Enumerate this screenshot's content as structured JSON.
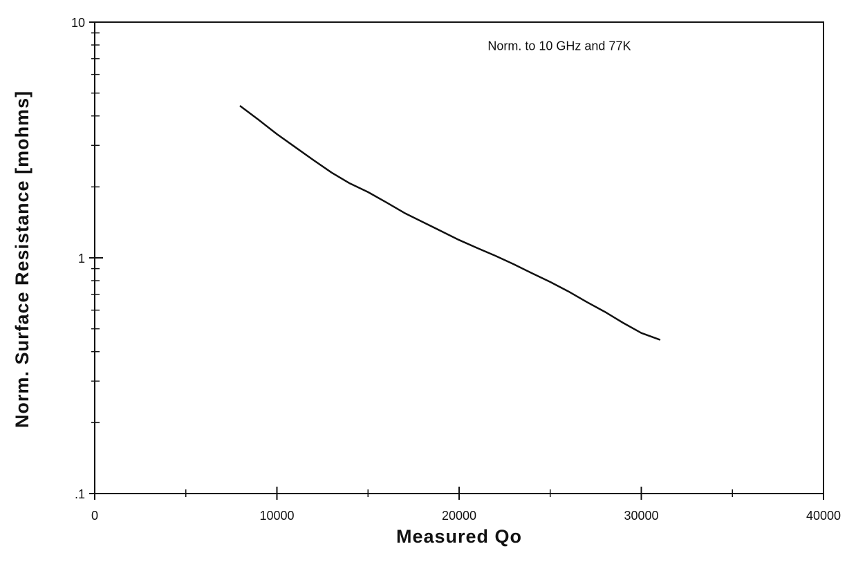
{
  "chart_data": {
    "type": "line",
    "title": "",
    "xlabel": "Measured   Qo",
    "ylabel": "Norm.   Surface   Resistance   [mohms]",
    "xlim": [
      0,
      40000
    ],
    "ylim": [
      0.1,
      10
    ],
    "yscale": "log",
    "x_ticks": [
      0,
      10000,
      20000,
      30000,
      40000
    ],
    "x_tick_labels": [
      "0",
      "10000",
      "20000",
      "30000",
      "40000"
    ],
    "y_ticks": [
      0.1,
      1,
      10
    ],
    "y_tick_labels": [
      ".1",
      "1",
      "10"
    ],
    "grid": false,
    "legend": "none",
    "annotations": [
      {
        "text": "Norm. to 10 GHz and 77K",
        "x": 25500,
        "y": 7.6
      }
    ],
    "series": [
      {
        "x": [
          8000,
          9000,
          10000,
          11000,
          12000,
          13000,
          14000,
          15000,
          16000,
          17000,
          18000,
          19000,
          20000,
          21000,
          22000,
          23000,
          24000,
          25000,
          26000,
          27000,
          28000,
          29000,
          30000,
          31000
        ],
        "y": [
          4.4,
          3.85,
          3.35,
          2.95,
          2.6,
          2.3,
          2.07,
          1.9,
          1.72,
          1.55,
          1.42,
          1.3,
          1.19,
          1.1,
          1.02,
          0.94,
          0.86,
          0.79,
          0.72,
          0.65,
          0.59,
          0.53,
          0.48,
          0.45
        ]
      }
    ]
  }
}
